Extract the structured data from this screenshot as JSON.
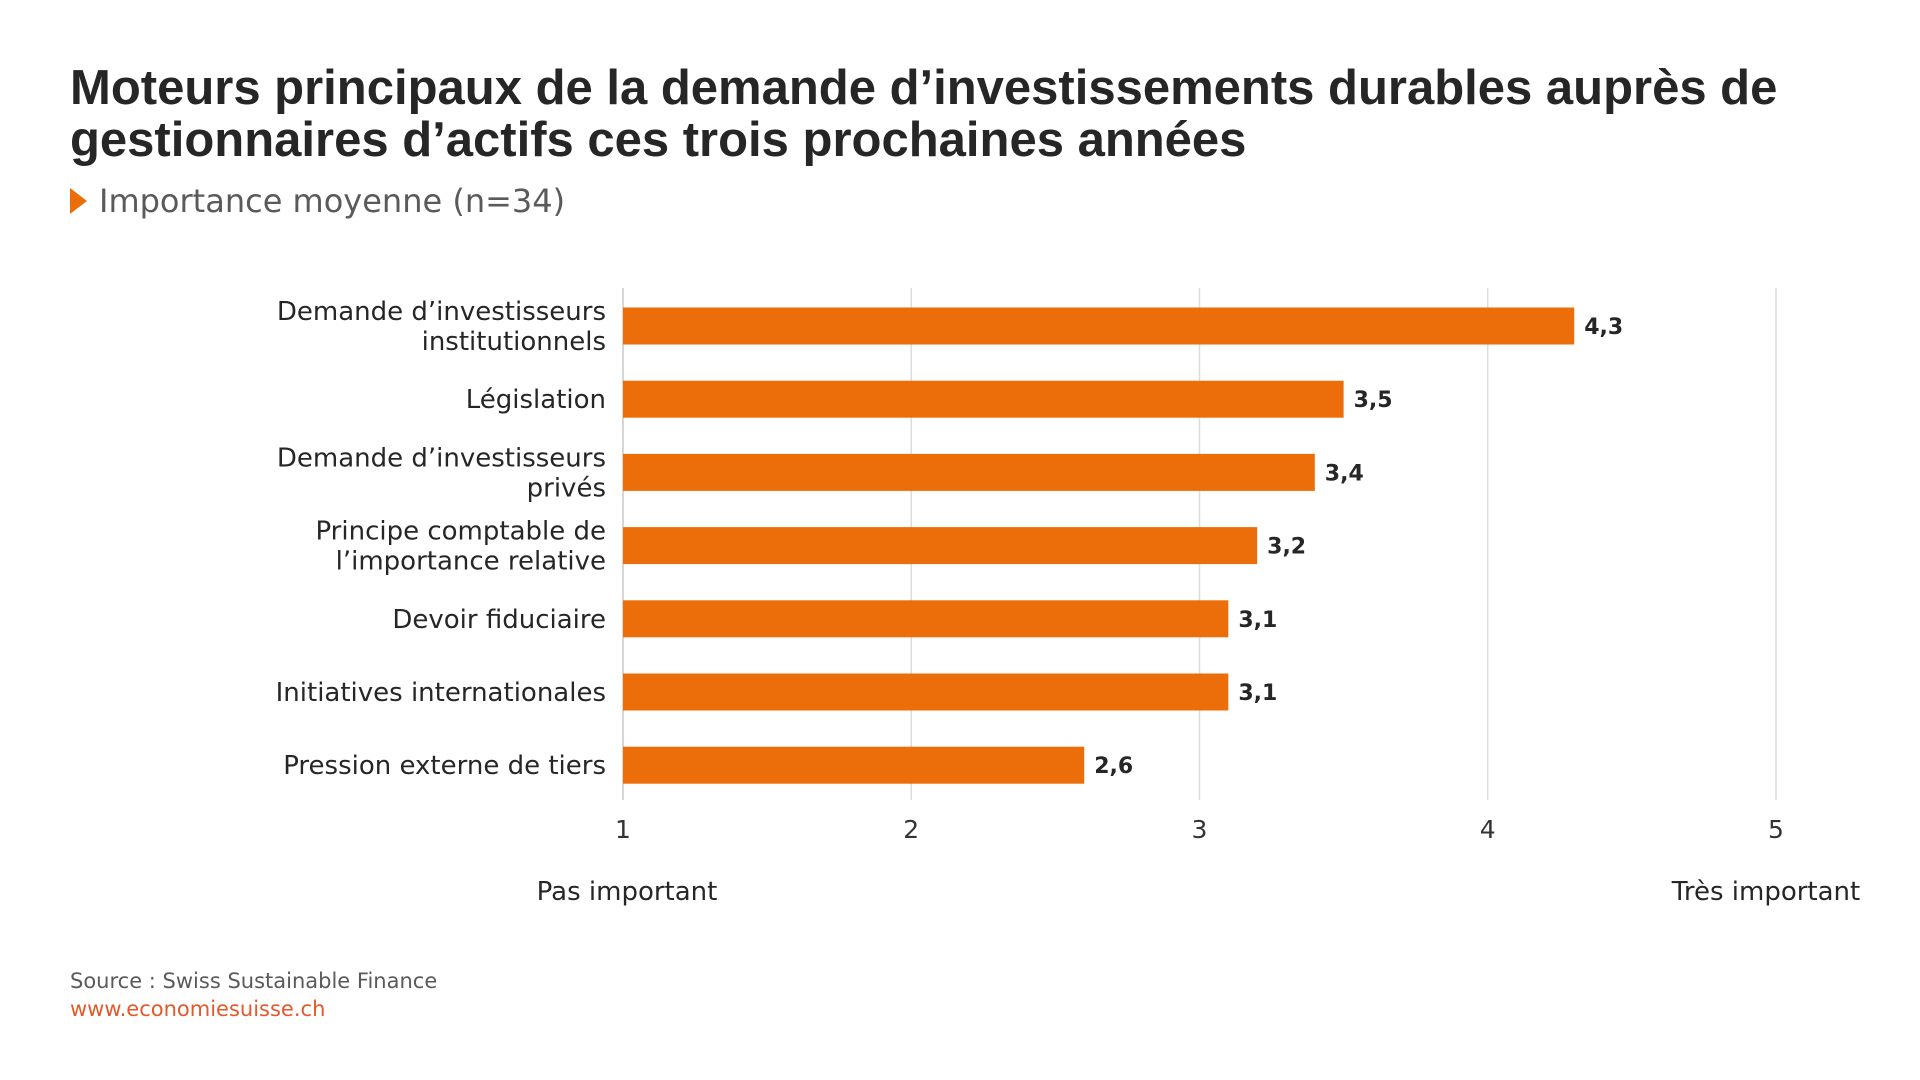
{
  "chart_data": {
    "type": "bar",
    "orientation": "horizontal",
    "title": "Moteurs principaux de la demande d’investissements durables auprès de gestionnaires d’actifs ces trois prochaines années",
    "subtitle": "Importance moyenne (n=34)",
    "categories": [
      [
        "Demande d’investisseurs",
        "institutionnels"
      ],
      [
        "Législation"
      ],
      [
        "Demande d’investisseurs",
        "privés"
      ],
      [
        "Principe comptable de",
        "l’importance relative"
      ],
      [
        "Devoir fiduciaire"
      ],
      [
        "Initiatives internationales"
      ],
      [
        "Pression externe de tiers"
      ]
    ],
    "values": [
      4.3,
      3.5,
      3.4,
      3.2,
      3.1,
      3.1,
      2.6
    ],
    "value_labels": [
      "4,3",
      "3,5",
      "3,4",
      "3,2",
      "3,1",
      "3,1",
      "2,6"
    ],
    "xlim": [
      1,
      5
    ],
    "xticks": [
      "1",
      "2",
      "3",
      "4",
      "5"
    ],
    "scale_low_label": "Pas important",
    "scale_high_label": "Très important",
    "grid": true,
    "bar_color": "#ec6e0a"
  },
  "footer": {
    "source": "Source : Swiss Sustainable Finance",
    "website": "www.economiesuisse.ch"
  },
  "colors": {
    "accent": "#ec6e0a",
    "link": "#e25a2c",
    "grid": "#dcdcdc"
  }
}
